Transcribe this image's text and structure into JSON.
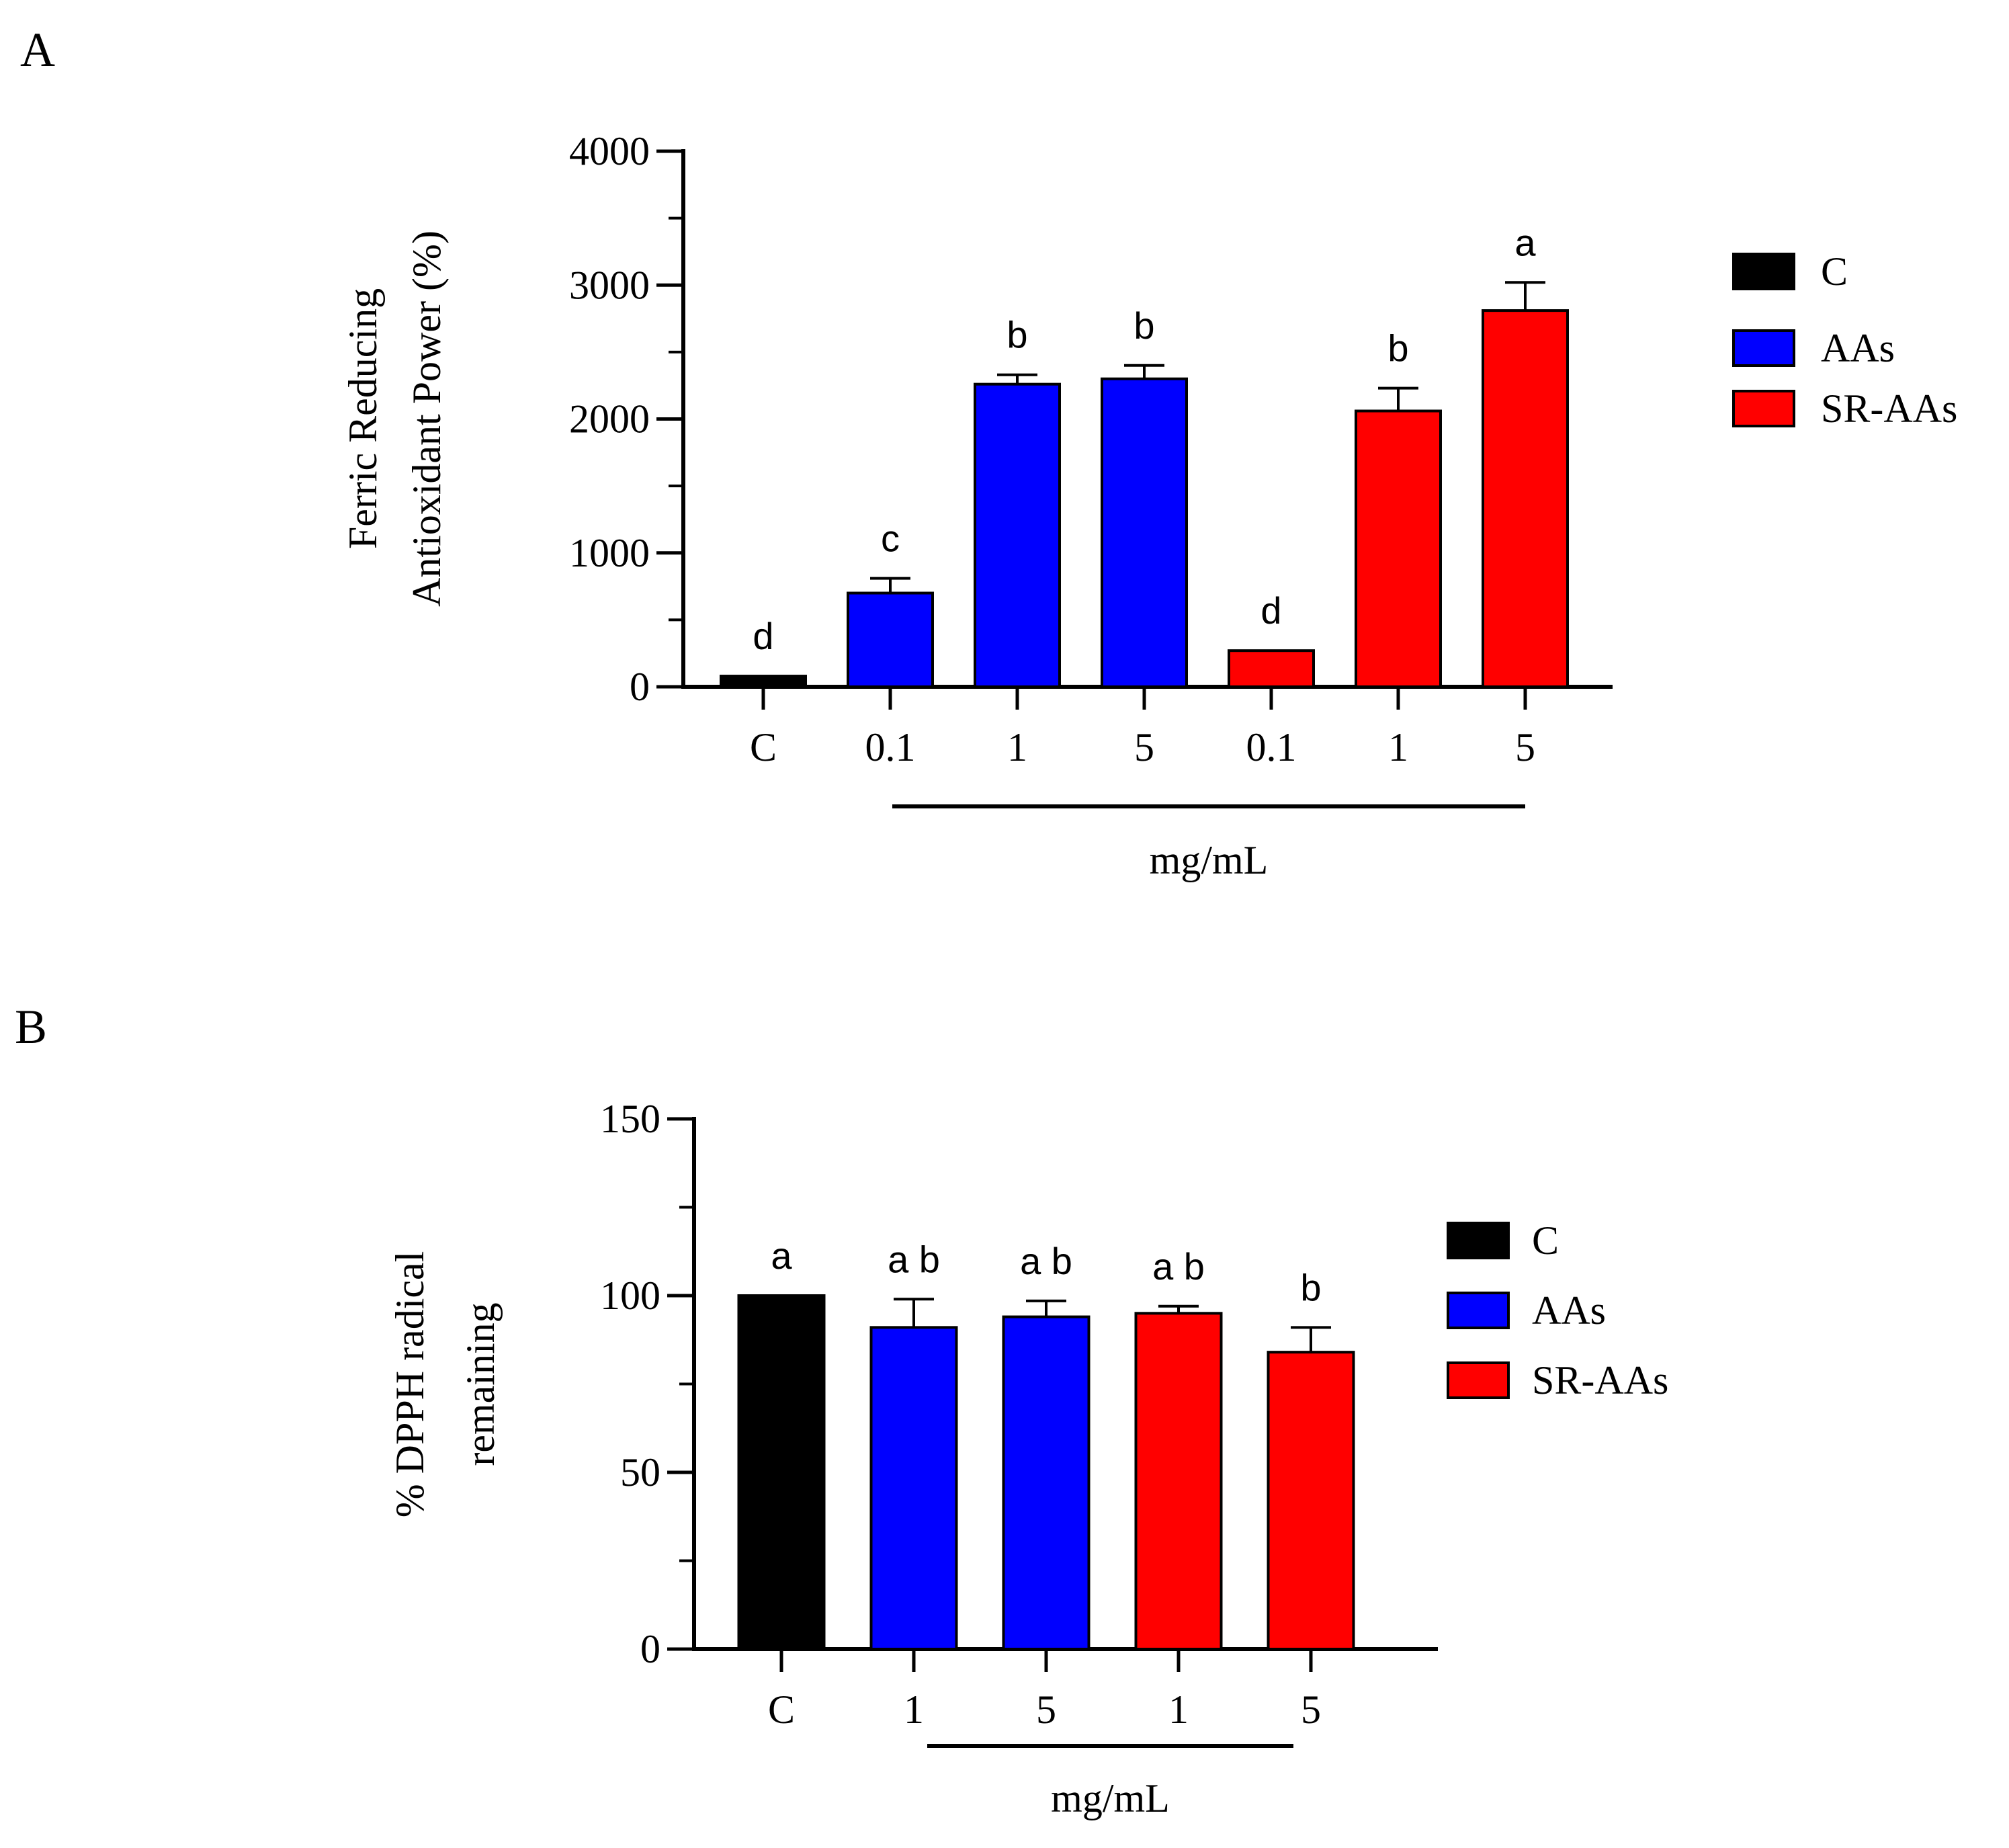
{
  "colors": {
    "C": "#000000",
    "AAs": "#0000ff",
    "SR-AAs": "#ff0000"
  },
  "chart_data": [
    {
      "panel": "A",
      "type": "bar",
      "categories": [
        "C",
        "0.1",
        "1",
        "5",
        "0.1",
        "1",
        "5"
      ],
      "groups": [
        "C",
        "AAs",
        "AAs",
        "AAs",
        "SR-AAs",
        "SR-AAs",
        "SR-AAs"
      ],
      "values": [
        80,
        700,
        2260,
        2300,
        270,
        2060,
        2810
      ],
      "errors": [
        0,
        110,
        70,
        100,
        0,
        170,
        210
      ],
      "letters": [
        "d",
        "c",
        "b",
        "b",
        "d",
        "b",
        "a"
      ],
      "xlabel": "mg/mL",
      "ylabel_lines": [
        "Ferric Reducing",
        "Antioxidant Power (%)"
      ],
      "ylim": [
        0,
        4000
      ],
      "yticks": [
        0,
        1000,
        2000,
        3000,
        4000
      ],
      "ytick_labels": [
        "0",
        "1000",
        "2000",
        "3000",
        "4000"
      ],
      "legend": [
        "C",
        "AAs",
        "SR-AAs"
      ]
    },
    {
      "panel": "B",
      "type": "bar",
      "categories": [
        "C",
        "1",
        "5",
        "1",
        "5"
      ],
      "groups": [
        "C",
        "AAs",
        "AAs",
        "SR-AAs",
        "SR-AAs"
      ],
      "values": [
        100,
        91,
        94,
        95,
        84
      ],
      "errors": [
        0,
        8,
        4.5,
        2,
        7
      ],
      "letters": [
        "a",
        "a b",
        "a b",
        "a b",
        "b"
      ],
      "xlabel": "mg/mL",
      "ylabel_lines": [
        "% DPPH radical",
        "remaining"
      ],
      "ylim": [
        0,
        150
      ],
      "yticks": [
        0,
        50,
        100,
        150
      ],
      "ytick_labels": [
        "0",
        "50",
        "100",
        "150"
      ],
      "legend": [
        "C",
        "AAs",
        "SR-AAs"
      ]
    }
  ]
}
